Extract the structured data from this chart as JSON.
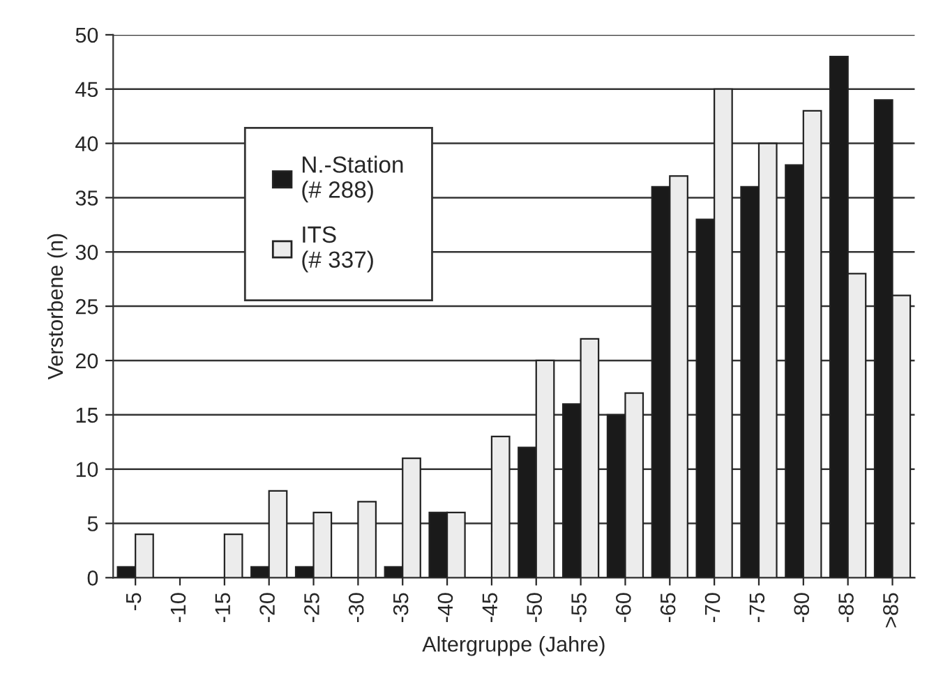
{
  "chart_data": {
    "type": "bar",
    "xlabel": "Altergruppe (Jahre)",
    "ylabel": "Verstorbene (n)",
    "categories": [
      "-5",
      "-10",
      "-15",
      "-20",
      "-25",
      "-30",
      "-35",
      "-40",
      "-45",
      "-50",
      "-55",
      "-60",
      "-65",
      "-70",
      "-75",
      "-80",
      "-85",
      ">85"
    ],
    "series": [
      {
        "name": "N.-Station\n(# 288)",
        "color": "#1a1a1a",
        "values": [
          1,
          0,
          0,
          1,
          1,
          0,
          1,
          6,
          0,
          12,
          16,
          15,
          36,
          33,
          36,
          38,
          48,
          44
        ]
      },
      {
        "name": "ITS\n(# 337)",
        "color": "#ececec",
        "values": [
          4,
          0,
          4,
          8,
          6,
          7,
          11,
          6,
          13,
          20,
          22,
          17,
          37,
          45,
          40,
          43,
          28,
          26
        ]
      }
    ],
    "ylim": [
      0,
      50
    ],
    "yticks": [
      0,
      5,
      10,
      15,
      20,
      25,
      30,
      35,
      40,
      45,
      50
    ],
    "grid": "y",
    "legend": "top left"
  }
}
